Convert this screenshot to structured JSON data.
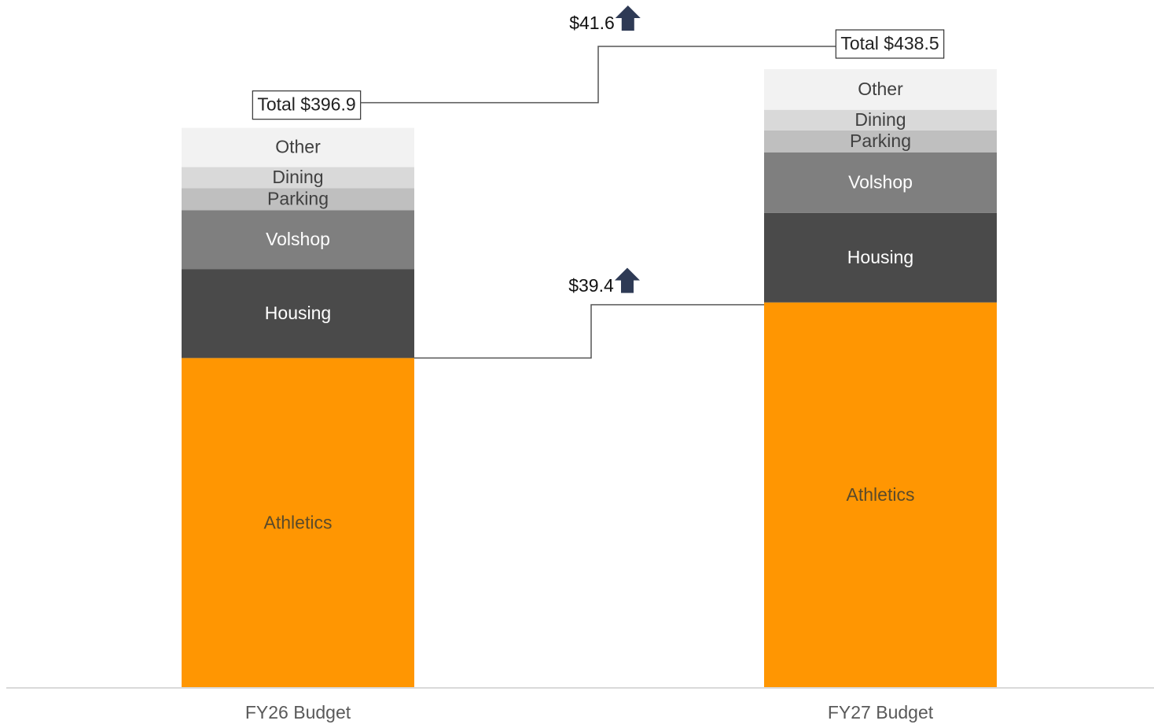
{
  "chart_data": {
    "type": "stacked_bar",
    "categories": [
      "FY26 Budget",
      "FY27 Budget"
    ],
    "series": [
      {
        "name": "Athletics",
        "color": "#ff9602",
        "values": [
          233.8,
          273.2
        ]
      },
      {
        "name": "Housing",
        "color": "#4a4a4a",
        "values": [
          62.9,
          63.5
        ]
      },
      {
        "name": "Volshop",
        "color": "#7f7f7f",
        "values": [
          41.8,
          42.9
        ]
      },
      {
        "name": "Parking",
        "color": "#bfbfbf",
        "values": [
          15.6,
          15.6
        ]
      },
      {
        "name": "Dining",
        "color": "#d9d9d9",
        "values": [
          15.0,
          14.5
        ]
      },
      {
        "name": "Other",
        "color": "#f2f2f2",
        "values": [
          27.8,
          28.8
        ]
      }
    ],
    "total_labels": [
      "Total $396.9",
      "Total $438.5"
    ],
    "change_labels": [
      "$39.4",
      "$41.6"
    ],
    "arrow_color": "#2e3a55"
  }
}
